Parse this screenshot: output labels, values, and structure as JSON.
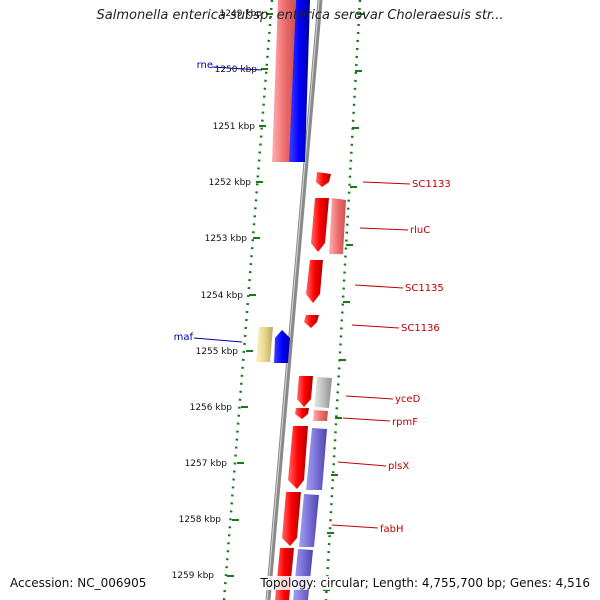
{
  "title": "Salmonella enterica subsp. enterica serovar Choleraesuis str...",
  "footer": {
    "accession": "Accession: NC_006905",
    "topology": "Topology: circular; Length: 4,755,700 bp; Genes: 4,516"
  },
  "colors": {
    "forward_cds": "#e00000",
    "reverse_cds": "#0000ee",
    "forward_label": "#c00000",
    "reverse_label": "#0000aa",
    "tick": "#1a7a1a",
    "backbone": "#8a8a8a"
  },
  "ruler": {
    "unit": "kbp",
    "ticks": [
      "1249 kbp",
      "1250 kbp",
      "1251 kbp",
      "1252 kbp",
      "1253 kbp",
      "1254 kbp",
      "1255 kbp",
      "1256 kbp",
      "1257 kbp",
      "1258 kbp",
      "1259 kbp"
    ]
  },
  "genes": [
    {
      "name": "rne",
      "strand": "reverse"
    },
    {
      "name": "SC1133",
      "strand": "forward"
    },
    {
      "name": "rluC",
      "strand": "forward"
    },
    {
      "name": "SC1135",
      "strand": "forward"
    },
    {
      "name": "SC1136",
      "strand": "forward"
    },
    {
      "name": "maf",
      "strand": "reverse"
    },
    {
      "name": "yceD",
      "strand": "forward"
    },
    {
      "name": "rpmF",
      "strand": "forward"
    },
    {
      "name": "plsX",
      "strand": "forward"
    },
    {
      "name": "fabH",
      "strand": "forward"
    }
  ]
}
